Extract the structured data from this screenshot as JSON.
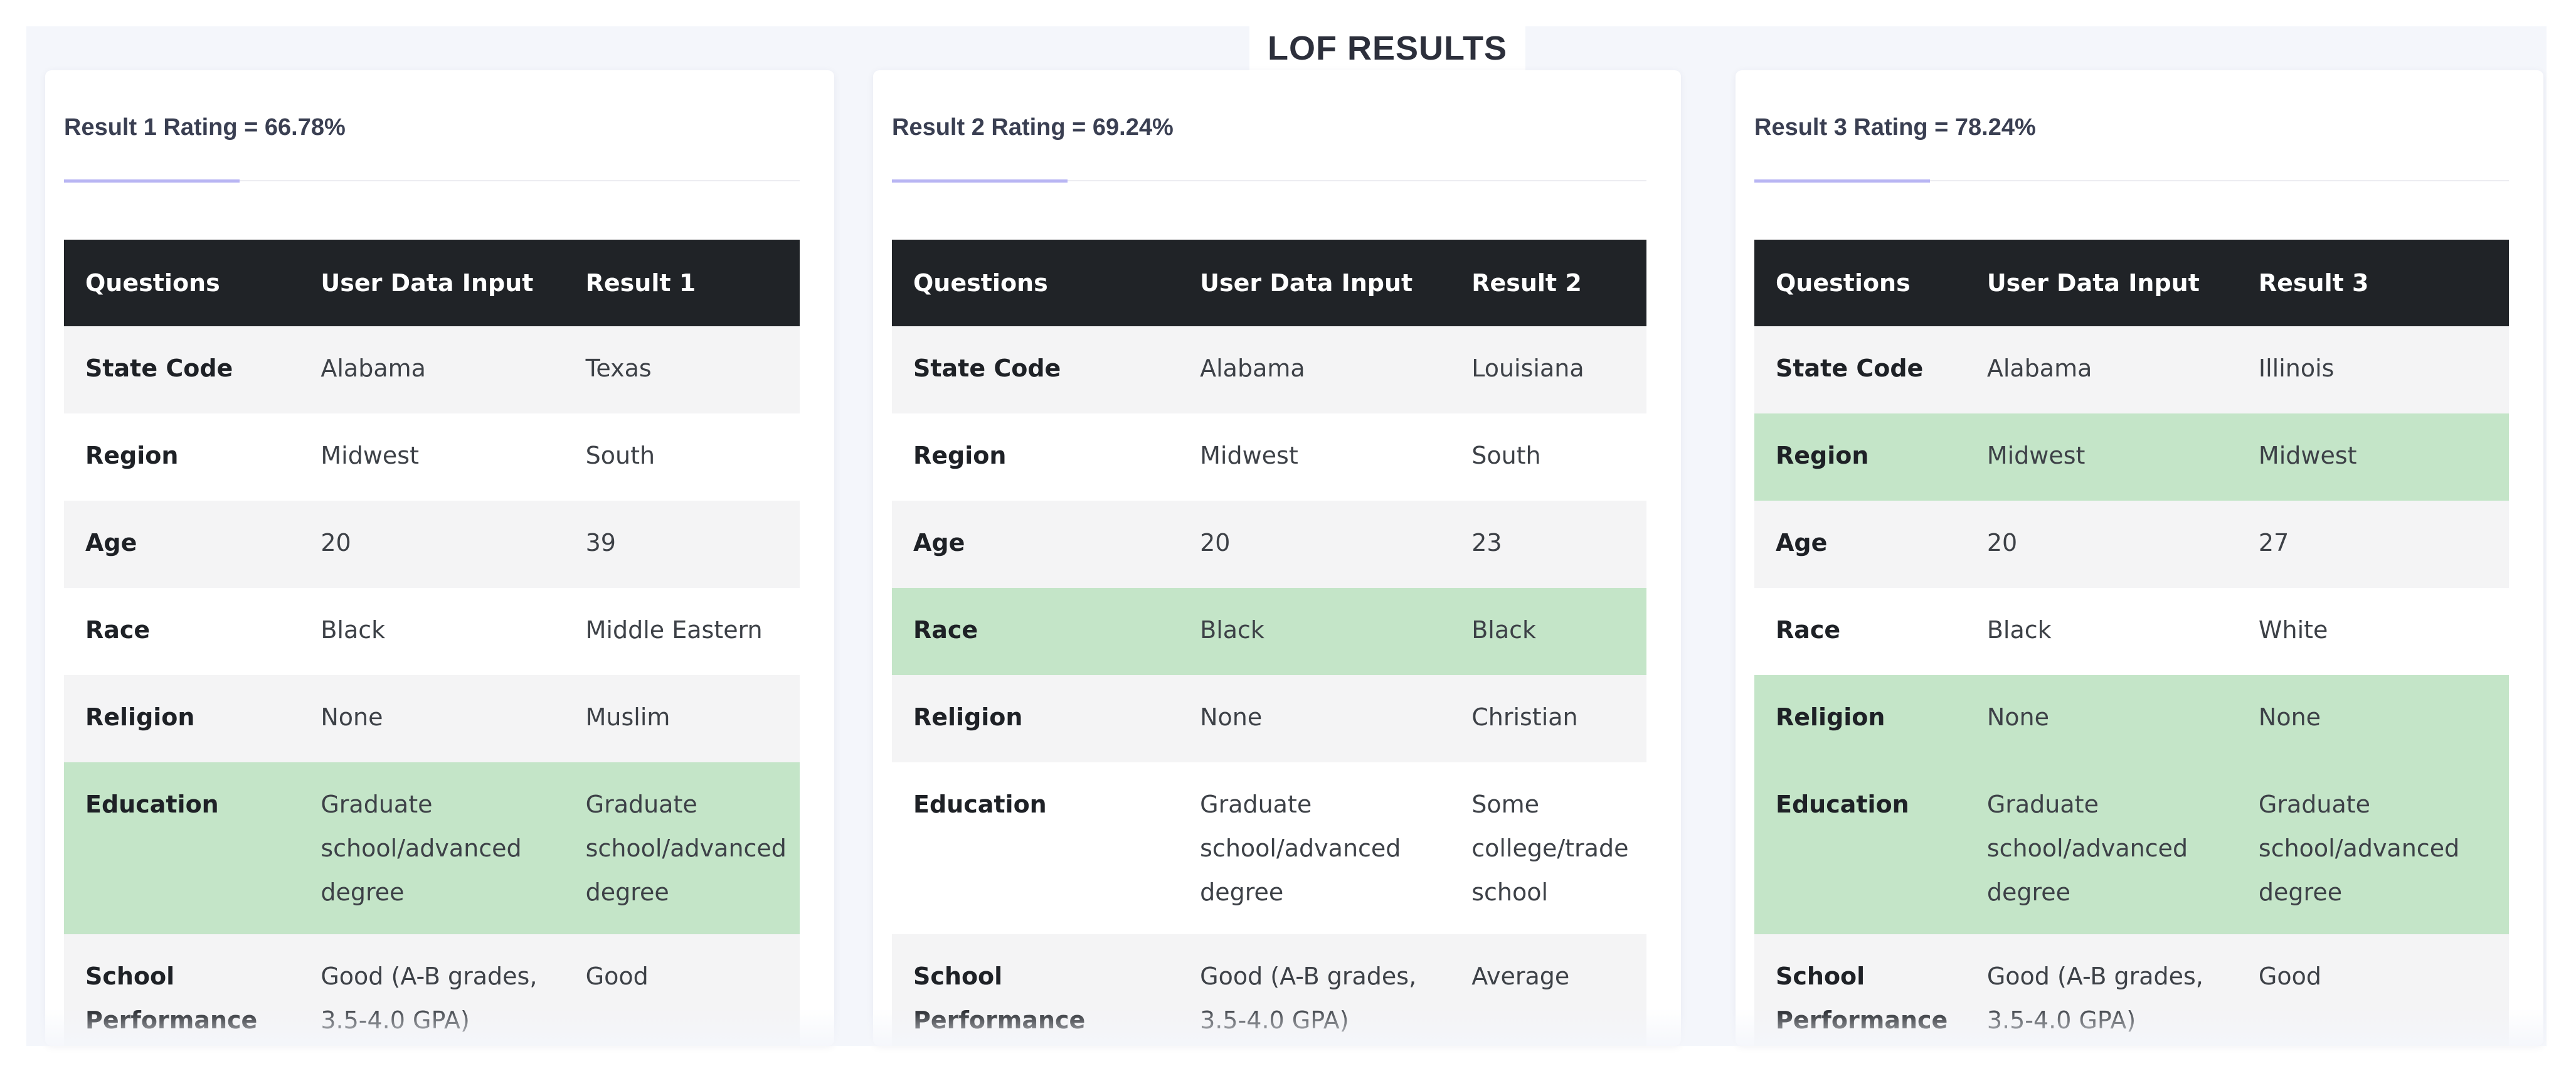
{
  "page": {
    "title": "LOF RESULTS"
  },
  "colors": {
    "header_bg": "#202327",
    "match_bg": "#c4e5c8",
    "accent": "#b8b5f3"
  },
  "results": [
    {
      "rating": "Result 1 Rating = 66.78%",
      "headers": [
        "Questions",
        "User Data Input",
        "Result 1"
      ],
      "rows": [
        {
          "question": "State Code",
          "input": "Alabama",
          "result": "Texas",
          "match": false
        },
        {
          "question": "Region",
          "input": "Midwest",
          "result": "South",
          "match": false
        },
        {
          "question": "Age",
          "input": "20",
          "result": "39",
          "match": false
        },
        {
          "question": "Race",
          "input": "Black",
          "result": "Middle Eastern",
          "match": false
        },
        {
          "question": "Religion",
          "input": "None",
          "result": "Muslim",
          "match": false
        },
        {
          "question": "Education",
          "input": "Graduate school/advanced degree",
          "result": "Graduate school/advanced degree",
          "match": true
        },
        {
          "question": "School Performance",
          "input": "Good (A-B grades, 3.5-4.0 GPA)",
          "result": "Good",
          "match": false
        }
      ]
    },
    {
      "rating": "Result 2 Rating = 69.24%",
      "headers": [
        "Questions",
        "User Data Input",
        "Result 2"
      ],
      "rows": [
        {
          "question": "State Code",
          "input": "Alabama",
          "result": "Louisiana",
          "match": false
        },
        {
          "question": "Region",
          "input": "Midwest",
          "result": "South",
          "match": false
        },
        {
          "question": "Age",
          "input": "20",
          "result": "23",
          "match": false
        },
        {
          "question": "Race",
          "input": "Black",
          "result": "Black",
          "match": true
        },
        {
          "question": "Religion",
          "input": "None",
          "result": "Christian",
          "match": false
        },
        {
          "question": "Education",
          "input": "Graduate school/advanced degree",
          "result": "Some college/trade school",
          "match": false
        },
        {
          "question": "School Performance",
          "input": "Good (A-B grades, 3.5-4.0 GPA)",
          "result": "Average",
          "match": false
        }
      ]
    },
    {
      "rating": "Result 3 Rating = 78.24%",
      "headers": [
        "Questions",
        "User Data Input",
        "Result 3"
      ],
      "rows": [
        {
          "question": "State Code",
          "input": "Alabama",
          "result": "Illinois",
          "match": false
        },
        {
          "question": "Region",
          "input": "Midwest",
          "result": "Midwest",
          "match": true
        },
        {
          "question": "Age",
          "input": "20",
          "result": "27",
          "match": false
        },
        {
          "question": "Race",
          "input": "Black",
          "result": "White",
          "match": false
        },
        {
          "question": "Religion",
          "input": "None",
          "result": "None",
          "match": true
        },
        {
          "question": "Education",
          "input": "Graduate school/advanced degree",
          "result": "Graduate school/advanced degree",
          "match": true
        },
        {
          "question": "School Performance",
          "input": "Good (A-B grades, 3.5-4.0 GPA)",
          "result": "Good",
          "match": false
        }
      ]
    }
  ]
}
